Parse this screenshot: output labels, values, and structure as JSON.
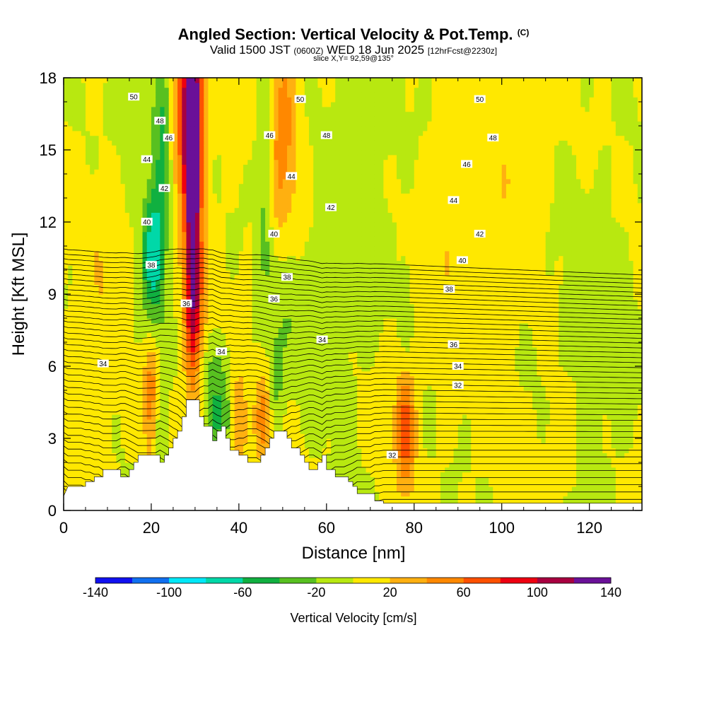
{
  "title": {
    "main": "Angled Section: Vertical Velocity & Pot.Temp.",
    "units": "(C)",
    "valid_prefix": "Valid 1500 JST",
    "valid_zulu": "(0600Z)",
    "valid_date": "WED 18 Jun 2025",
    "forecast": "[12hrFcst@2230z]",
    "slice": "slice X,Y= 92,59@135°"
  },
  "colors": {
    "colorbar": [
      "#1010f0",
      "#1070f0",
      "#00e8f8",
      "#00d8a8",
      "#10b040",
      "#58c020",
      "#b8e810",
      "#ffe800",
      "#ffb010",
      "#ff8800",
      "#ff5000",
      "#ee0010",
      "#a80040",
      "#6a1098"
    ],
    "terrain": "#ffffff",
    "contour": "#000000"
  },
  "chart_data": {
    "type": "heatmap",
    "field": "Vertical Velocity",
    "overlay": "Potential Temperature contours (C)",
    "xlabel": "Distance [nm]",
    "ylabel": "Height [Kft MSL]",
    "xlim": [
      0,
      132
    ],
    "ylim": [
      0,
      18
    ],
    "xticks": [
      0,
      20,
      40,
      60,
      80,
      100,
      120
    ],
    "yticks": [
      0,
      3,
      6,
      9,
      12,
      15,
      18
    ],
    "colorbar": {
      "label": "Vertical Velocity [cm/s]",
      "levels": [
        -140,
        -120,
        -100,
        -80,
        -60,
        -40,
        -20,
        0,
        20,
        40,
        60,
        80,
        100,
        120,
        140
      ],
      "tick_labels": [
        "-140",
        "-100",
        "-60",
        "-20",
        "20",
        "60",
        "100",
        "140"
      ]
    },
    "terrain_profile": [
      [
        0,
        0.6
      ],
      [
        1,
        1.0
      ],
      [
        5,
        1.0
      ],
      [
        5,
        1.2
      ],
      [
        7,
        1.2
      ],
      [
        7,
        1.4
      ],
      [
        9,
        1.4
      ],
      [
        9,
        1.7
      ],
      [
        13,
        1.7
      ],
      [
        13,
        1.4
      ],
      [
        15,
        1.4
      ],
      [
        15,
        1.7
      ],
      [
        16,
        1.7
      ],
      [
        16,
        2.0
      ],
      [
        17,
        2.0
      ],
      [
        17,
        2.3
      ],
      [
        22,
        2.3
      ],
      [
        22,
        2.0
      ],
      [
        23,
        2.0
      ],
      [
        23,
        2.3
      ],
      [
        24,
        2.3
      ],
      [
        24,
        2.6
      ],
      [
        25,
        2.6
      ],
      [
        25,
        3.0
      ],
      [
        26,
        3.0
      ],
      [
        26,
        3.3
      ],
      [
        27,
        3.3
      ],
      [
        27,
        3.9
      ],
      [
        28,
        3.9
      ],
      [
        28,
        4.6
      ],
      [
        31,
        4.6
      ],
      [
        31,
        3.9
      ],
      [
        32,
        3.9
      ],
      [
        32,
        3.5
      ],
      [
        34,
        3.5
      ],
      [
        34,
        2.9
      ],
      [
        35,
        2.9
      ],
      [
        35,
        3.3
      ],
      [
        36,
        3.3
      ],
      [
        36,
        3.5
      ],
      [
        37,
        3.5
      ],
      [
        37,
        3.0
      ],
      [
        38,
        3.0
      ],
      [
        38,
        2.5
      ],
      [
        40,
        2.5
      ],
      [
        40,
        2.3
      ],
      [
        42,
        2.3
      ],
      [
        42,
        2.0
      ],
      [
        45,
        2.0
      ],
      [
        45,
        2.3
      ],
      [
        46,
        2.3
      ],
      [
        46,
        2.6
      ],
      [
        47,
        2.6
      ],
      [
        47,
        3.0
      ],
      [
        48,
        3.0
      ],
      [
        48,
        3.3
      ],
      [
        51,
        3.3
      ],
      [
        51,
        3.0
      ],
      [
        52,
        3.0
      ],
      [
        52,
        2.6
      ],
      [
        54,
        2.6
      ],
      [
        54,
        2.3
      ],
      [
        55,
        2.3
      ],
      [
        55,
        2.0
      ],
      [
        56,
        2.0
      ],
      [
        56,
        1.7
      ],
      [
        58,
        1.7
      ],
      [
        58,
        2.0
      ],
      [
        59,
        2.0
      ],
      [
        59,
        2.3
      ],
      [
        60,
        2.3
      ],
      [
        60,
        1.7
      ],
      [
        62,
        1.7
      ],
      [
        62,
        1.4
      ],
      [
        65,
        1.4
      ],
      [
        65,
        1.2
      ],
      [
        66,
        1.2
      ],
      [
        66,
        1.0
      ],
      [
        67,
        1.0
      ],
      [
        67,
        0.7
      ],
      [
        71,
        0.7
      ],
      [
        71,
        0.4
      ],
      [
        73,
        0.4
      ],
      [
        73,
        0.3
      ],
      [
        132,
        0.3
      ]
    ],
    "velocity_features": [
      {
        "x": 29.5,
        "y": 13.5,
        "sx": 1.3,
        "sy": 5.5,
        "value": 120
      },
      {
        "x": 28.5,
        "y": 16.5,
        "sx": 2.5,
        "sy": 2.5,
        "value": 90
      },
      {
        "x": 30,
        "y": 8.5,
        "sx": 2.0,
        "sy": 2.5,
        "value": 40
      },
      {
        "x": 20,
        "y": 10.5,
        "sx": 1.7,
        "sy": 2.2,
        "value": -60
      },
      {
        "x": 22,
        "y": 13,
        "sx": 1.5,
        "sy": 3.5,
        "value": -35
      },
      {
        "x": 23,
        "y": 16.5,
        "sx": 1.5,
        "sy": 2,
        "value": -30
      },
      {
        "x": 14,
        "y": 17,
        "sx": 2.5,
        "sy": 1.5,
        "value": -15
      },
      {
        "x": 50,
        "y": 15.5,
        "sx": 2.5,
        "sy": 3.5,
        "value": 50
      },
      {
        "x": 46,
        "y": 14.5,
        "sx": 1.3,
        "sy": 4.5,
        "value": -35
      },
      {
        "x": 51,
        "y": 9.5,
        "sx": 2,
        "sy": 2.5,
        "value": -25
      },
      {
        "x": 45.5,
        "y": 3.8,
        "sx": 1.3,
        "sy": 1.4,
        "value": 50
      },
      {
        "x": 48.5,
        "y": 5.5,
        "sx": 1.2,
        "sy": 1.5,
        "value": -30
      },
      {
        "x": 20,
        "y": 4.5,
        "sx": 1.2,
        "sy": 2.0,
        "value": 55
      },
      {
        "x": 22,
        "y": 3.3,
        "sx": 1.5,
        "sy": 1.2,
        "value": -30
      },
      {
        "x": 35,
        "y": 3.8,
        "sx": 2.0,
        "sy": 1.0,
        "value": -45
      },
      {
        "x": 34,
        "y": 5.8,
        "sx": 3.5,
        "sy": 1.0,
        "value": -25
      },
      {
        "x": 40,
        "y": 3.5,
        "sx": 1.2,
        "sy": 2.0,
        "value": 40
      },
      {
        "x": 78,
        "y": 3.4,
        "sx": 1.6,
        "sy": 1.8,
        "value": 70
      },
      {
        "x": 78,
        "y": 8.5,
        "sx": 0.8,
        "sy": 1.5,
        "value": -20
      },
      {
        "x": 114,
        "y": 3,
        "sx": 3,
        "sy": 2,
        "value": 15
      },
      {
        "x": 120,
        "y": 7,
        "sx": 6,
        "sy": 5,
        "value": -12
      },
      {
        "x": 100,
        "y": 14,
        "sx": 6,
        "sy": 4,
        "value": 12
      },
      {
        "x": 68,
        "y": 15,
        "sx": 6,
        "sy": 4,
        "value": -12
      },
      {
        "x": 62,
        "y": 8,
        "sx": 4,
        "sy": 3,
        "value": -12
      },
      {
        "x": 9,
        "y": 9.5,
        "sx": 3,
        "sy": 3,
        "value": 15
      },
      {
        "x": 6,
        "y": 3,
        "sx": 3,
        "sy": 2,
        "value": 12
      },
      {
        "x": 89,
        "y": 11,
        "sx": 5,
        "sy": 3,
        "value": 14
      }
    ],
    "contour_labels": [
      {
        "x": 16,
        "y": 17.2,
        "text": "50"
      },
      {
        "x": 54,
        "y": 17.1,
        "text": "50"
      },
      {
        "x": 95,
        "y": 17.1,
        "text": "50"
      },
      {
        "x": 22,
        "y": 16.2,
        "text": "48"
      },
      {
        "x": 60,
        "y": 15.6,
        "text": "48"
      },
      {
        "x": 98,
        "y": 15.5,
        "text": "48"
      },
      {
        "x": 24,
        "y": 15.5,
        "text": "46"
      },
      {
        "x": 47,
        "y": 15.6,
        "text": "46"
      },
      {
        "x": 92,
        "y": 14.4,
        "text": "46"
      },
      {
        "x": 19,
        "y": 14.6,
        "text": "44"
      },
      {
        "x": 52,
        "y": 13.9,
        "text": "44"
      },
      {
        "x": 89,
        "y": 12.9,
        "text": "44"
      },
      {
        "x": 23,
        "y": 13.4,
        "text": "42"
      },
      {
        "x": 61,
        "y": 12.6,
        "text": "42"
      },
      {
        "x": 95,
        "y": 11.5,
        "text": "42"
      },
      {
        "x": 19,
        "y": 12.0,
        "text": "40"
      },
      {
        "x": 48,
        "y": 11.5,
        "text": "40"
      },
      {
        "x": 91,
        "y": 10.4,
        "text": "40"
      },
      {
        "x": 20,
        "y": 10.2,
        "text": "38"
      },
      {
        "x": 51,
        "y": 9.7,
        "text": "38"
      },
      {
        "x": 88,
        "y": 9.2,
        "text": "38"
      },
      {
        "x": 28,
        "y": 8.6,
        "text": "36"
      },
      {
        "x": 48,
        "y": 8.8,
        "text": "36"
      },
      {
        "x": 89,
        "y": 6.9,
        "text": "36"
      },
      {
        "x": 36,
        "y": 6.6,
        "text": "34"
      },
      {
        "x": 59,
        "y": 7.1,
        "text": "34"
      },
      {
        "x": 9,
        "y": 6.1,
        "text": "34"
      },
      {
        "x": 90,
        "y": 6.0,
        "text": "34"
      },
      {
        "x": 90,
        "y": 5.2,
        "text": "32"
      },
      {
        "x": 75,
        "y": 2.3,
        "text": "32"
      }
    ]
  }
}
